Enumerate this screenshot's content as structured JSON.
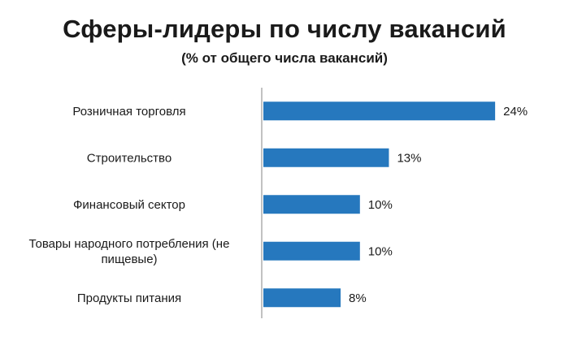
{
  "chart_data": {
    "type": "bar",
    "orientation": "horizontal",
    "title": "Сферы-лидеры по числу вакансий",
    "subtitle": "(% от общего числа вакансий)",
    "categories": [
      "Розничная торговля",
      "Строительство",
      "Финансовый сектор",
      "Товары народного потребления  (не пищевые)",
      "Продукты питания"
    ],
    "category_lines": [
      [
        "Розничная торговля"
      ],
      [
        "Строительство"
      ],
      [
        "Финансовый сектор"
      ],
      [
        "Товары народного потребления  (не",
        "пищевые)"
      ],
      [
        "Продукты питания"
      ]
    ],
    "values": [
      24,
      13,
      10,
      10,
      8
    ],
    "value_labels": [
      "24%",
      "13%",
      "10%",
      "10%",
      "8%"
    ],
    "unit": "%",
    "xlim": [
      0,
      25
    ],
    "grid": false,
    "legend": "none",
    "bar_color": "#2678BE",
    "axis_color": "#9A9A9A"
  }
}
